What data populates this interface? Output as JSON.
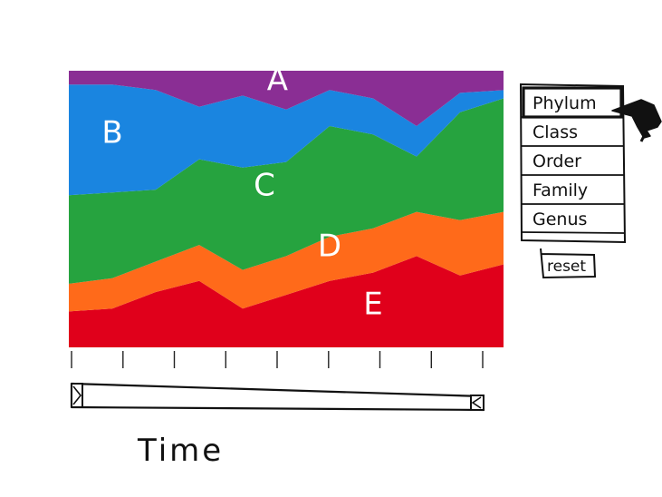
{
  "chart_data": {
    "type": "area",
    "stacked": true,
    "normalized": true,
    "xlabel": "Time",
    "title": "",
    "ylabel": "",
    "x": [
      0,
      1,
      2,
      3,
      4,
      5,
      6,
      7,
      8,
      9,
      10
    ],
    "series": [
      {
        "name": "E",
        "color": "#e0001b",
        "values": [
          0.13,
          0.14,
          0.2,
          0.24,
          0.14,
          0.19,
          0.24,
          0.27,
          0.33,
          0.26,
          0.3
        ]
      },
      {
        "name": "D",
        "color": "#ff6a1a",
        "values": [
          0.1,
          0.11,
          0.11,
          0.13,
          0.14,
          0.14,
          0.16,
          0.16,
          0.16,
          0.2,
          0.19
        ]
      },
      {
        "name": "C",
        "color": "#26a33f",
        "values": [
          0.32,
          0.31,
          0.26,
          0.31,
          0.37,
          0.34,
          0.4,
          0.34,
          0.2,
          0.39,
          0.41
        ]
      },
      {
        "name": "B",
        "color": "#1a85e0",
        "values": [
          0.4,
          0.39,
          0.36,
          0.19,
          0.26,
          0.19,
          0.13,
          0.13,
          0.11,
          0.07,
          0.03
        ]
      },
      {
        "name": "A",
        "color": "#8a2e94",
        "values": [
          0.05,
          0.05,
          0.07,
          0.13,
          0.09,
          0.14,
          0.07,
          0.1,
          0.2,
          0.08,
          0.07
        ]
      }
    ]
  },
  "taxonomy_menu": {
    "items": [
      "Phylum",
      "Class",
      "Order",
      "Family",
      "Genus"
    ],
    "selected_index": 0
  },
  "reset_button": {
    "label": "reset"
  },
  "time_slider": {
    "range": [
      0,
      1
    ]
  },
  "icons": {
    "cursor": "cursor-arrow-icon",
    "slider_handle_left": "slider-handle-left-icon",
    "slider_handle_right": "slider-handle-right-icon"
  }
}
